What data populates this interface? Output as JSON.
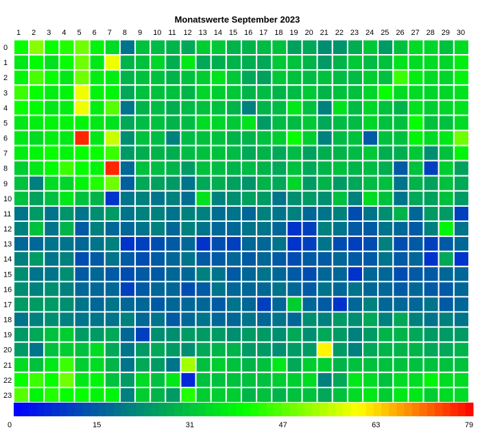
{
  "chart_data": {
    "type": "heatmap",
    "title": "Monatswerte September 2023",
    "x_labels": [
      "1",
      "2",
      "3",
      "4",
      "5",
      "6",
      "7",
      "8",
      "9",
      "10",
      "11",
      "12",
      "13",
      "14",
      "15",
      "16",
      "17",
      "18",
      "19",
      "20",
      "21",
      "22",
      "23",
      "24",
      "25",
      "26",
      "27",
      "28",
      "29",
      "30"
    ],
    "y_labels": [
      "0",
      "1",
      "2",
      "3",
      "4",
      "5",
      "6",
      "7",
      "8",
      "9",
      "10",
      "11",
      "12",
      "13",
      "14",
      "15",
      "16",
      "17",
      "18",
      "19",
      "20",
      "21",
      "22",
      "23"
    ],
    "color_scale": {
      "min": 0,
      "max": 79,
      "ticks": [
        "0",
        "15",
        "31",
        "47",
        "63",
        "79"
      ],
      "colors": [
        "#0000ff",
        "#007f7f",
        "#00ff00",
        "#ffff00",
        "#ff0000"
      ]
    },
    "values": [
      [
        40,
        50,
        40,
        42,
        48,
        38,
        34,
        18,
        30,
        29,
        28,
        26,
        32,
        31,
        28,
        28,
        29,
        30,
        25,
        26,
        22,
        23,
        27,
        31,
        24,
        30,
        34,
        33,
        30,
        34
      ],
      [
        36,
        39,
        35,
        40,
        48,
        36,
        58,
        28,
        30,
        33,
        27,
        36,
        26,
        27,
        28,
        27,
        26,
        31,
        30,
        28,
        24,
        28,
        31,
        29,
        30,
        35,
        34,
        34,
        33,
        37
      ],
      [
        38,
        45,
        40,
        36,
        48,
        37,
        37,
        28,
        30,
        30,
        28,
        30,
        32,
        35,
        31,
        26,
        25,
        31,
        30,
        29,
        30,
        29,
        29,
        32,
        30,
        44,
        37,
        34,
        33,
        38
      ],
      [
        44,
        40,
        37,
        38,
        58,
        38,
        38,
        26,
        30,
        30,
        30,
        28,
        33,
        32,
        31,
        28,
        29,
        28,
        29,
        31,
        28,
        30,
        30,
        33,
        40,
        34,
        34,
        33,
        33,
        35
      ],
      [
        40,
        39,
        36,
        37,
        58,
        37,
        46,
        18,
        28,
        29,
        27,
        29,
        30,
        30,
        28,
        20,
        28,
        29,
        36,
        30,
        20,
        35,
        29,
        33,
        30,
        28,
        35,
        32,
        33,
        35
      ],
      [
        36,
        37,
        38,
        38,
        38,
        36,
        35,
        26,
        29,
        30,
        28,
        29,
        34,
        33,
        31,
        35,
        24,
        29,
        29,
        31,
        26,
        29,
        29,
        33,
        30,
        30,
        40,
        30,
        30,
        34
      ],
      [
        36,
        34,
        37,
        36,
        76,
        36,
        55,
        22,
        30,
        29,
        20,
        29,
        30,
        30,
        28,
        28,
        30,
        32,
        40,
        32,
        20,
        29,
        30,
        14,
        30,
        30,
        38,
        34,
        36,
        48
      ],
      [
        37,
        38,
        40,
        38,
        40,
        40,
        44,
        24,
        27,
        28,
        27,
        29,
        30,
        30,
        29,
        26,
        28,
        26,
        29,
        25,
        27,
        28,
        29,
        31,
        27,
        27,
        31,
        22,
        30,
        38
      ],
      [
        32,
        36,
        39,
        44,
        40,
        38,
        76,
        16,
        30,
        29,
        28,
        24,
        30,
        29,
        28,
        29,
        28,
        26,
        30,
        26,
        28,
        30,
        28,
        29,
        27,
        14,
        30,
        10,
        32,
        25
      ],
      [
        30,
        20,
        34,
        33,
        38,
        42,
        48,
        15,
        26,
        25,
        24,
        18,
        26,
        27,
        25,
        23,
        28,
        26,
        33,
        24,
        28,
        24,
        26,
        29,
        30,
        18,
        28,
        25,
        30,
        26
      ],
      [
        30,
        25,
        30,
        36,
        30,
        28,
        8,
        18,
        20,
        18,
        20,
        17,
        35,
        20,
        22,
        25,
        24,
        18,
        22,
        24,
        22,
        30,
        20,
        34,
        30,
        18,
        26,
        25,
        30,
        24
      ],
      [
        18,
        24,
        18,
        23,
        18,
        22,
        24,
        18,
        20,
        20,
        18,
        20,
        20,
        17,
        18,
        16,
        20,
        18,
        20,
        16,
        18,
        20,
        12,
        18,
        22,
        28,
        16,
        24,
        24,
        10
      ],
      [
        20,
        30,
        18,
        28,
        14,
        20,
        16,
        16,
        18,
        20,
        16,
        20,
        18,
        16,
        16,
        18,
        18,
        16,
        8,
        10,
        20,
        18,
        14,
        14,
        18,
        16,
        14,
        20,
        38,
        18
      ],
      [
        16,
        16,
        18,
        18,
        16,
        18,
        20,
        8,
        10,
        12,
        14,
        16,
        8,
        12,
        10,
        16,
        16,
        18,
        8,
        10,
        18,
        12,
        10,
        12,
        20,
        12,
        14,
        10,
        14,
        16
      ],
      [
        20,
        24,
        18,
        20,
        12,
        14,
        18,
        14,
        12,
        14,
        16,
        18,
        14,
        14,
        16,
        14,
        16,
        14,
        12,
        14,
        14,
        16,
        14,
        14,
        18,
        14,
        16,
        8,
        26,
        8
      ],
      [
        22,
        18,
        18,
        22,
        14,
        16,
        14,
        12,
        14,
        14,
        16,
        16,
        20,
        18,
        14,
        16,
        18,
        16,
        14,
        12,
        16,
        16,
        8,
        16,
        16,
        12,
        14,
        14,
        16,
        16
      ],
      [
        22,
        20,
        22,
        20,
        16,
        16,
        16,
        10,
        14,
        16,
        16,
        12,
        14,
        18,
        16,
        16,
        16,
        18,
        16,
        14,
        18,
        16,
        18,
        16,
        16,
        14,
        16,
        14,
        14,
        16
      ],
      [
        24,
        24,
        24,
        22,
        18,
        16,
        18,
        16,
        16,
        14,
        16,
        16,
        16,
        14,
        18,
        16,
        10,
        16,
        32,
        16,
        14,
        8,
        16,
        20,
        16,
        16,
        16,
        18,
        14,
        16
      ],
      [
        18,
        20,
        22,
        20,
        18,
        18,
        18,
        20,
        16,
        18,
        14,
        16,
        18,
        16,
        16,
        18,
        16,
        18,
        16,
        22,
        20,
        24,
        22,
        26,
        20,
        26,
        20,
        18,
        20,
        18
      ],
      [
        24,
        26,
        30,
        32,
        24,
        24,
        26,
        16,
        10,
        22,
        22,
        24,
        24,
        24,
        22,
        24,
        24,
        22,
        26,
        22,
        26,
        24,
        20,
        24,
        28,
        28,
        26,
        24,
        24,
        24
      ],
      [
        24,
        18,
        30,
        32,
        30,
        34,
        26,
        18,
        24,
        26,
        24,
        22,
        26,
        28,
        28,
        24,
        24,
        22,
        24,
        24,
        60,
        24,
        20,
        26,
        28,
        28,
        28,
        26,
        26,
        28
      ],
      [
        34,
        30,
        36,
        44,
        32,
        34,
        28,
        18,
        26,
        24,
        18,
        52,
        30,
        32,
        30,
        28,
        30,
        36,
        26,
        32,
        32,
        28,
        30,
        30,
        30,
        30,
        30,
        30,
        30,
        30
      ],
      [
        40,
        44,
        40,
        48,
        36,
        38,
        30,
        24,
        34,
        30,
        36,
        6,
        30,
        30,
        30,
        30,
        30,
        32,
        32,
        34,
        20,
        26,
        36,
        34,
        30,
        34,
        34,
        38,
        34,
        34
      ],
      [
        46,
        38,
        42,
        40,
        40,
        38,
        38,
        20,
        32,
        28,
        24,
        42,
        32,
        32,
        32,
        28,
        30,
        28,
        30,
        30,
        26,
        30,
        34,
        36,
        32,
        36,
        36,
        32,
        34,
        34
      ]
    ]
  }
}
